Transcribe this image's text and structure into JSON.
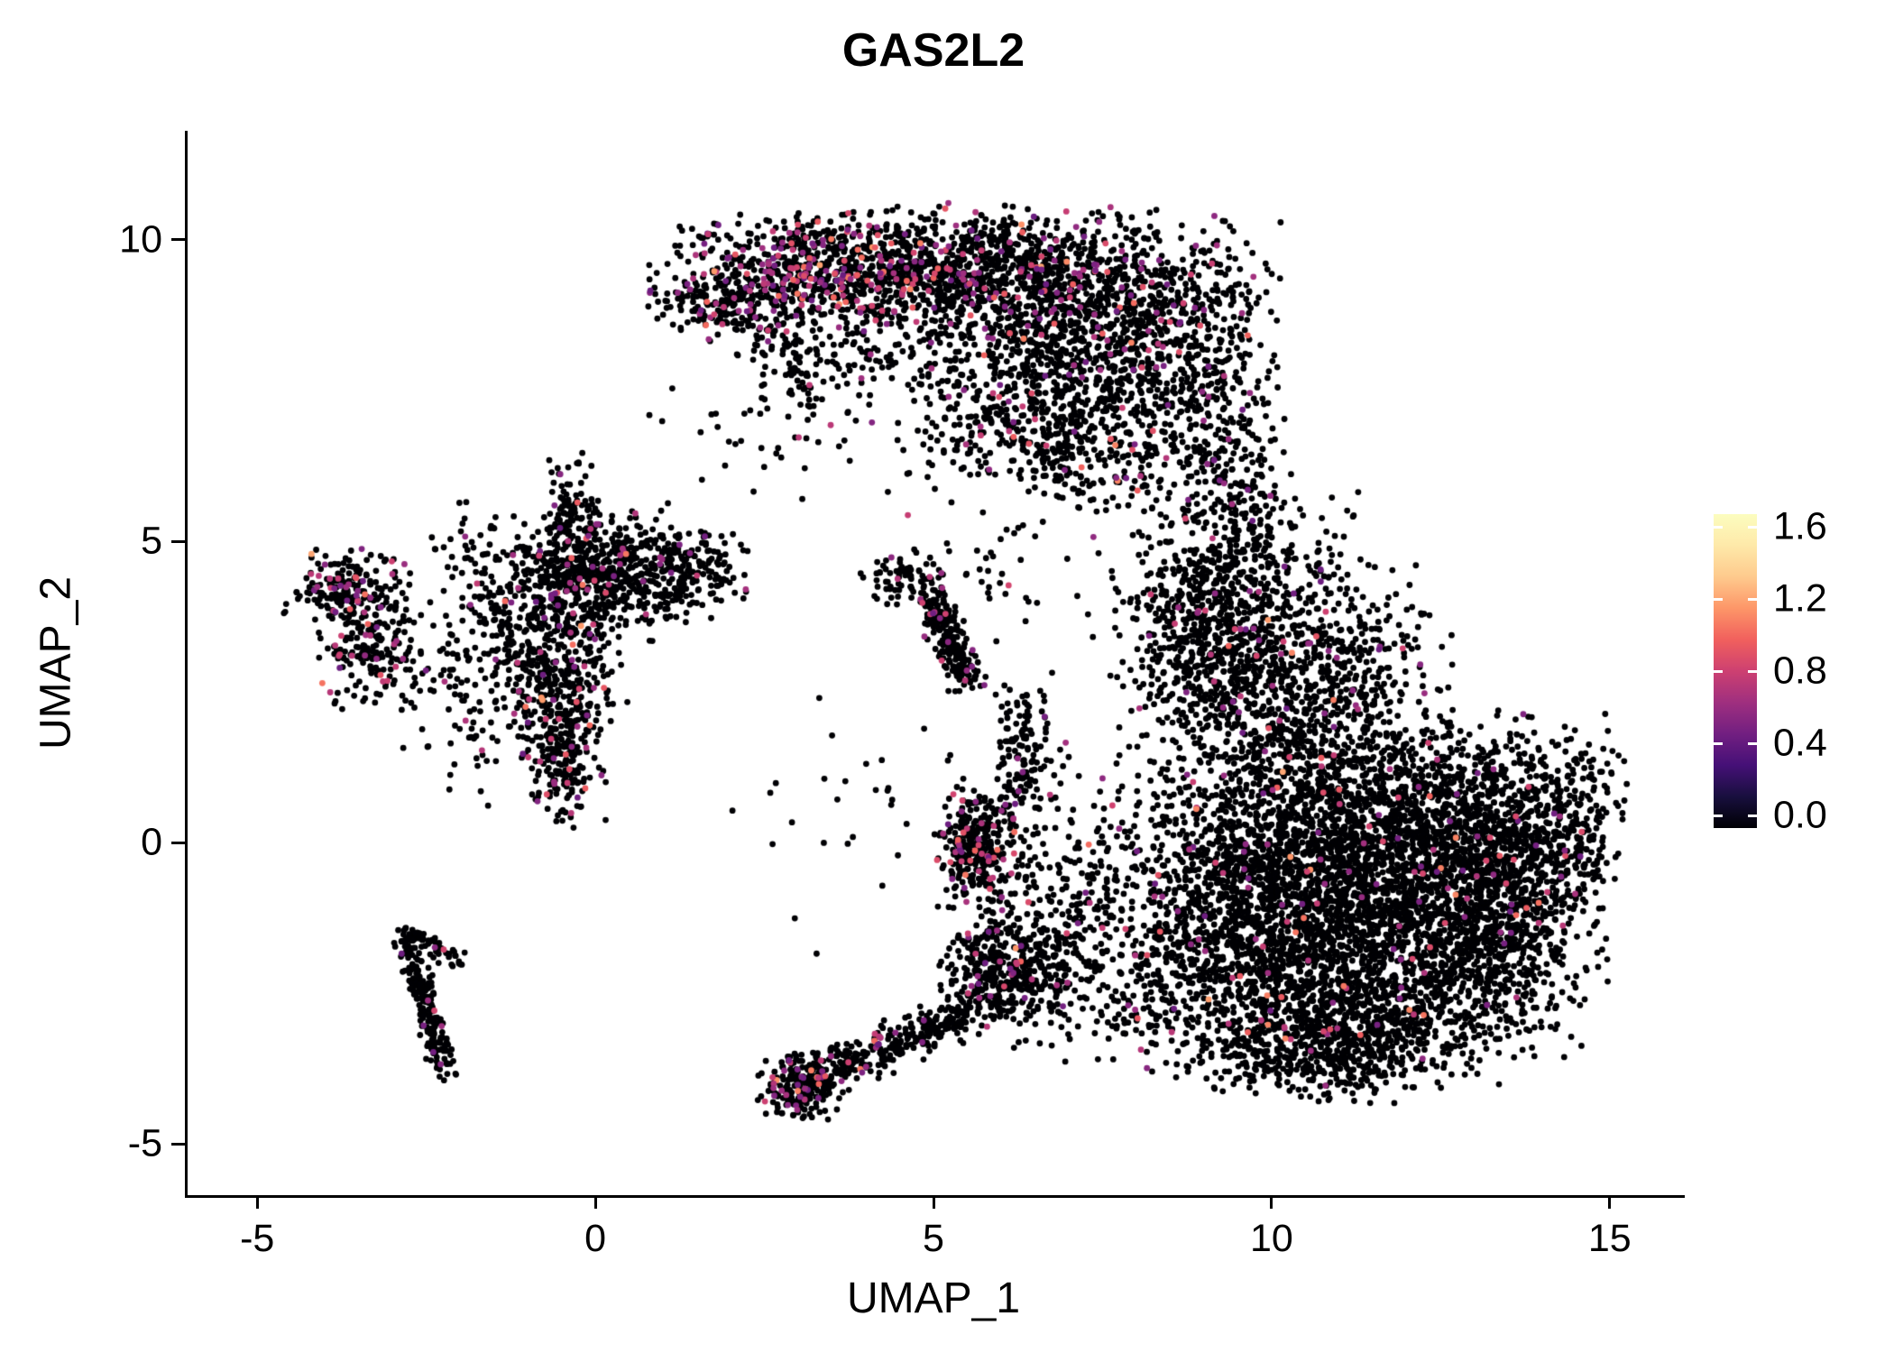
{
  "page": {
    "background": "#ffffff"
  },
  "chart_data": {
    "type": "scatter",
    "title": "GAS2L2",
    "xlabel": "UMAP_1",
    "ylabel": "UMAP_2",
    "xlim": [
      -6.07,
      16.07
    ],
    "ylim": [
      -5.85,
      11.81
    ],
    "x_ticks": [
      -5,
      0,
      5,
      10,
      15
    ],
    "y_ticks": [
      -5,
      0,
      5,
      10
    ],
    "grid": false,
    "point_radius_px": 3.4,
    "seed": 20240613,
    "text_color": "#000000",
    "axis_color": "#000000",
    "colormap": {
      "name": "magma",
      "stops": [
        {
          "t": 0.0,
          "c": "#000004"
        },
        {
          "t": 0.1,
          "c": "#180f3e"
        },
        {
          "t": 0.2,
          "c": "#451077"
        },
        {
          "t": 0.3,
          "c": "#721f81"
        },
        {
          "t": 0.4,
          "c": "#9f2f7f"
        },
        {
          "t": 0.5,
          "c": "#cd4071"
        },
        {
          "t": 0.6,
          "c": "#f1605d"
        },
        {
          "t": 0.7,
          "c": "#fd9668"
        },
        {
          "t": 0.8,
          "c": "#feca8d"
        },
        {
          "t": 0.9,
          "c": "#fee9a9"
        },
        {
          "t": 1.0,
          "c": "#fcfdbf"
        }
      ]
    },
    "colorbar": {
      "position": "right",
      "ticks": [
        1.6,
        1.2,
        0.8,
        0.4,
        0.0
      ],
      "value_min": 0.0,
      "value_max": 1.6,
      "bar_value_range": [
        -0.07,
        1.67
      ],
      "tick_mark_color": "#ffffff"
    },
    "expression_values": {
      "value_base": 0.45,
      "value_spread": 0.32,
      "value_max": 1.55
    },
    "clusters": [
      {
        "kind": "gauss",
        "cx": 3.2,
        "cy": 9.55,
        "sx": 1.1,
        "sy": 0.42,
        "n": 650,
        "colored_frac": 0.22
      },
      {
        "kind": "gauss",
        "cx": 5.6,
        "cy": 9.5,
        "sx": 1.3,
        "sy": 0.5,
        "n": 850,
        "colored_frac": 0.12
      },
      {
        "kind": "gauss",
        "cx": 7.3,
        "cy": 8.5,
        "sx": 1.05,
        "sy": 0.85,
        "n": 850,
        "colored_frac": 0.07
      },
      {
        "kind": "gauss",
        "cx": 6.6,
        "cy": 6.95,
        "sx": 0.95,
        "sy": 0.6,
        "n": 420,
        "colored_frac": 0.05
      },
      {
        "kind": "gauss",
        "cx": 9.0,
        "cy": 8.3,
        "sx": 0.5,
        "sy": 0.9,
        "n": 280,
        "colored_frac": 0.05
      },
      {
        "kind": "gauss",
        "cx": 4.6,
        "cy": 8.3,
        "sx": 1.2,
        "sy": 0.6,
        "n": 260,
        "colored_frac": 0.08
      },
      {
        "kind": "gauss",
        "cx": 1.8,
        "cy": 8.85,
        "sx": 0.45,
        "sy": 0.28,
        "n": 130,
        "colored_frac": 0.14
      },
      {
        "kind": "strip",
        "x1": 2.2,
        "y1": 9.0,
        "x2": 3.1,
        "y2": 7.5,
        "jitter": 0.25,
        "n": 90,
        "colored_frac": 0.08
      },
      {
        "kind": "gauss",
        "cx": 9.35,
        "cy": 5.4,
        "sx": 0.45,
        "sy": 1.1,
        "n": 320,
        "colored_frac": 0.04
      },
      {
        "kind": "gauss",
        "cx": 8.8,
        "cy": 4.1,
        "sx": 0.55,
        "sy": 0.7,
        "n": 200,
        "colored_frac": 0.05
      },
      {
        "kind": "gauss",
        "cx": 11.4,
        "cy": -1.3,
        "sx": 1.55,
        "sy": 1.05,
        "n": 2100,
        "colored_frac": 0.03
      },
      {
        "kind": "gauss",
        "cx": 12.6,
        "cy": 0.3,
        "sx": 1.15,
        "sy": 0.85,
        "n": 1150,
        "colored_frac": 0.03
      },
      {
        "kind": "gauss",
        "cx": 10.4,
        "cy": 1.4,
        "sx": 0.95,
        "sy": 1.15,
        "n": 850,
        "colored_frac": 0.04
      },
      {
        "kind": "gauss",
        "cx": 9.7,
        "cy": -0.6,
        "sx": 0.8,
        "sy": 1.0,
        "n": 650,
        "colored_frac": 0.03
      },
      {
        "kind": "gauss",
        "cx": 11.0,
        "cy": -2.9,
        "sx": 1.35,
        "sy": 0.55,
        "n": 750,
        "colored_frac": 0.03
      },
      {
        "kind": "gauss",
        "cx": 14.0,
        "cy": 0.1,
        "sx": 0.5,
        "sy": 0.75,
        "n": 280,
        "colored_frac": 0.03
      },
      {
        "kind": "gauss",
        "cx": 9.1,
        "cy": 2.9,
        "sx": 0.65,
        "sy": 0.95,
        "n": 380,
        "colored_frac": 0.05
      },
      {
        "kind": "gauss",
        "cx": 10.6,
        "cy": 3.3,
        "sx": 0.95,
        "sy": 0.65,
        "n": 300,
        "colored_frac": 0.04
      },
      {
        "kind": "gauss",
        "cx": 10.2,
        "cy": 4.6,
        "sx": 0.7,
        "sy": 0.55,
        "n": 110,
        "colored_frac": 0.04
      },
      {
        "kind": "gauss",
        "cx": 10.8,
        "cy": -3.6,
        "sx": 0.8,
        "sy": 0.35,
        "n": 240,
        "colored_frac": 0.03
      },
      {
        "kind": "gauss",
        "cx": 13.3,
        "cy": -1.6,
        "sx": 0.7,
        "sy": 0.7,
        "n": 350,
        "colored_frac": 0.03
      },
      {
        "kind": "gauss",
        "cx": -3.7,
        "cy": 4.15,
        "sx": 0.42,
        "sy": 0.33,
        "n": 200,
        "colored_frac": 0.16
      },
      {
        "kind": "gauss",
        "cx": -3.3,
        "cy": 3.15,
        "sx": 0.38,
        "sy": 0.42,
        "n": 170,
        "colored_frac": 0.14
      },
      {
        "kind": "gauss",
        "cx": -0.5,
        "cy": 4.25,
        "sx": 0.75,
        "sy": 0.55,
        "n": 420,
        "colored_frac": 0.07
      },
      {
        "kind": "gauss",
        "cx": 0.4,
        "cy": 4.6,
        "sx": 0.65,
        "sy": 0.45,
        "n": 320,
        "colored_frac": 0.05
      },
      {
        "kind": "gauss",
        "cx": -0.35,
        "cy": 5.35,
        "sx": 0.18,
        "sy": 0.5,
        "n": 110,
        "colored_frac": 0.05
      },
      {
        "kind": "gauss",
        "cx": -0.7,
        "cy": 2.75,
        "sx": 0.5,
        "sy": 0.55,
        "n": 280,
        "colored_frac": 0.09
      },
      {
        "kind": "gauss",
        "cx": -0.5,
        "cy": 1.45,
        "sx": 0.28,
        "sy": 0.55,
        "n": 200,
        "colored_frac": 0.12
      },
      {
        "kind": "gauss",
        "cx": 1.25,
        "cy": 4.5,
        "sx": 0.5,
        "sy": 0.3,
        "n": 140,
        "colored_frac": 0.05
      },
      {
        "kind": "gauss",
        "cx": -1.3,
        "cy": 3.6,
        "sx": 0.85,
        "sy": 0.95,
        "n": 140,
        "colored_frac": 0.06
      },
      {
        "kind": "gauss",
        "cx": 4.6,
        "cy": 4.35,
        "sx": 0.35,
        "sy": 0.22,
        "n": 80,
        "colored_frac": 0.05
      },
      {
        "kind": "strip",
        "x1": 4.95,
        "y1": 4.0,
        "x2": 5.5,
        "y2": 2.6,
        "jitter": 0.14,
        "n": 230,
        "colored_frac": 0.08
      },
      {
        "kind": "strip",
        "x1": -2.85,
        "y1": -1.55,
        "x2": -2.25,
        "y2": -3.85,
        "jitter": 0.1,
        "n": 200,
        "colored_frac": 0.05
      },
      {
        "kind": "strip",
        "x1": -2.8,
        "y1": -1.5,
        "x2": -2.05,
        "y2": -1.95,
        "jitter": 0.08,
        "n": 60,
        "colored_frac": 0.05
      },
      {
        "kind": "gauss",
        "cx": 3.0,
        "cy": -4.05,
        "sx": 0.3,
        "sy": 0.25,
        "n": 200,
        "colored_frac": 0.1
      },
      {
        "kind": "strip",
        "x1": 3.2,
        "y1": -3.9,
        "x2": 5.6,
        "y2": -2.75,
        "jitter": 0.18,
        "n": 320,
        "colored_frac": 0.08
      },
      {
        "kind": "strip",
        "x1": 5.6,
        "y1": -2.75,
        "x2": 6.9,
        "y2": -1.6,
        "jitter": 0.22,
        "n": 150,
        "colored_frac": 0.05
      },
      {
        "kind": "gauss",
        "cx": 7.2,
        "cy": -0.9,
        "sx": 0.95,
        "sy": 1.15,
        "n": 380,
        "colored_frac": 0.04
      },
      {
        "kind": "gauss",
        "cx": 6.3,
        "cy": 1.5,
        "sx": 0.2,
        "sy": 0.6,
        "n": 130,
        "colored_frac": 0.06
      },
      {
        "kind": "gauss",
        "cx": 5.62,
        "cy": -0.05,
        "sx": 0.3,
        "sy": 0.5,
        "n": 300,
        "colored_frac": 0.12
      },
      {
        "kind": "gauss",
        "cx": 6.3,
        "cy": -2.2,
        "sx": 0.5,
        "sy": 0.6,
        "n": 170,
        "colored_frac": 0.05
      },
      {
        "kind": "gauss",
        "cx": 5.7,
        "cy": -1.9,
        "sx": 0.3,
        "sy": 0.35,
        "n": 120,
        "colored_frac": 0.08
      },
      {
        "kind": "gauss",
        "cx": 8.3,
        "cy": -2.4,
        "sx": 0.7,
        "sy": 0.7,
        "n": 150,
        "colored_frac": 0.03
      },
      {
        "kind": "gauss",
        "cx": 2.5,
        "cy": 6.8,
        "sx": 0.8,
        "sy": 0.6,
        "n": 50,
        "colored_frac": 0.05
      },
      {
        "kind": "gauss",
        "cx": 6.5,
        "cy": 4.8,
        "sx": 1.2,
        "sy": 0.8,
        "n": 60,
        "colored_frac": 0.05
      },
      {
        "kind": "gauss",
        "cx": 4.2,
        "cy": 0.5,
        "sx": 1.2,
        "sy": 1.2,
        "n": 40,
        "colored_frac": 0.05
      },
      {
        "kind": "gauss",
        "cx": 7.8,
        "cy": 6.2,
        "sx": 0.8,
        "sy": 0.5,
        "n": 120,
        "colored_frac": 0.05
      },
      {
        "kind": "gauss",
        "cx": -1.7,
        "cy": 2.2,
        "sx": 0.6,
        "sy": 0.7,
        "n": 80,
        "colored_frac": 0.08
      }
    ]
  }
}
